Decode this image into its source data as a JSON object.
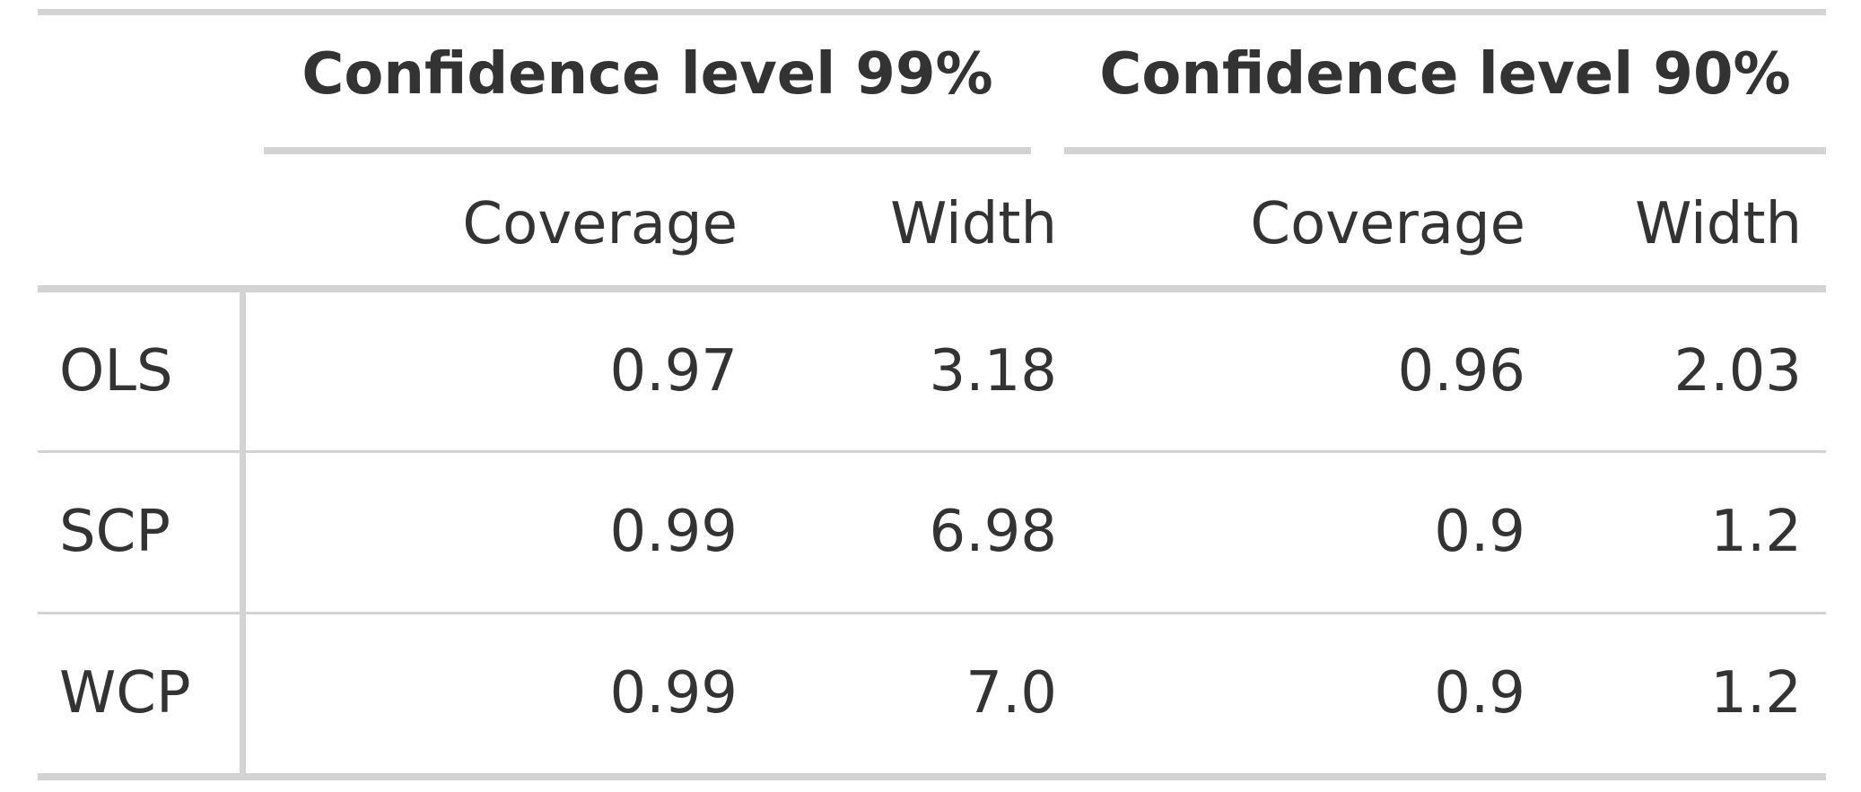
{
  "table": {
    "spanners": [
      "Confidence level 99%",
      "Confidence level 90%"
    ],
    "column_labels": [
      "Coverage",
      "Width",
      "Coverage",
      "Width"
    ],
    "rows": [
      {
        "method": "OLS",
        "cov_99": "0.97",
        "width_99": "3.18",
        "cov_90": "0.96",
        "width_90": "2.03"
      },
      {
        "method": "SCP",
        "cov_99": "0.99",
        "width_99": "6.98",
        "cov_90": "0.9",
        "width_90": "1.2"
      },
      {
        "method": "WCP",
        "cov_99": "0.99",
        "width_99": "7.0",
        "cov_90": "0.9",
        "width_90": "1.2"
      }
    ]
  },
  "colors": {
    "text": "#333333",
    "rule": "#d3d3d3",
    "background": "#ffffff"
  }
}
